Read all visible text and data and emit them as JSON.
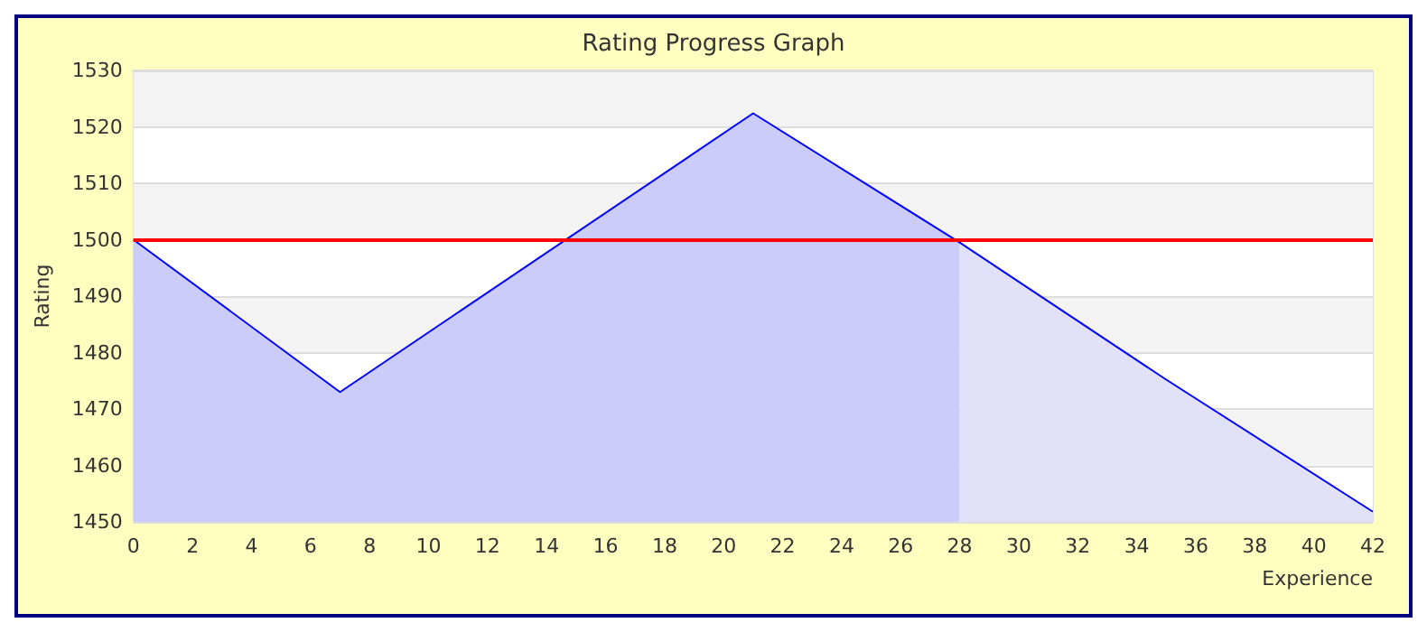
{
  "chart_data": {
    "type": "line",
    "title": "Rating Progress Graph",
    "xlabel": "Experience",
    "ylabel": "Rating",
    "series": [
      {
        "type": "area",
        "color": "#ccccfa",
        "x": [
          0,
          7,
          21,
          28
        ],
        "values": [
          1500,
          1473,
          1522.4,
          1499.5
        ]
      },
      {
        "type": "area",
        "color": "#e1e1fa",
        "x": [
          28,
          35,
          42
        ],
        "values": [
          1499.5,
          1475.2,
          1451.8
        ]
      },
      {
        "color": "#0000ff",
        "x": [
          0,
          7,
          21,
          28,
          35,
          42
        ],
        "values": [
          1500,
          1473,
          1522.4,
          1499.5,
          1475.2,
          1451.8
        ]
      }
    ],
    "xlim": [
      0,
      42
    ],
    "xticks": [
      0,
      2,
      4,
      6,
      8,
      10,
      12,
      14,
      16,
      18,
      20,
      22,
      24,
      26,
      28,
      30,
      32,
      34,
      36,
      38,
      40,
      42
    ],
    "ylim": [
      1450,
      1530
    ],
    "yticks": [
      1450,
      1460,
      1470,
      1480,
      1490,
      1500,
      1510,
      1520,
      1530
    ],
    "ref_lines": [
      {
        "axis": "y",
        "value": 1500,
        "color": "#ff0000"
      }
    ],
    "grid": "y",
    "marker": "none",
    "line_style": "solid"
  }
}
